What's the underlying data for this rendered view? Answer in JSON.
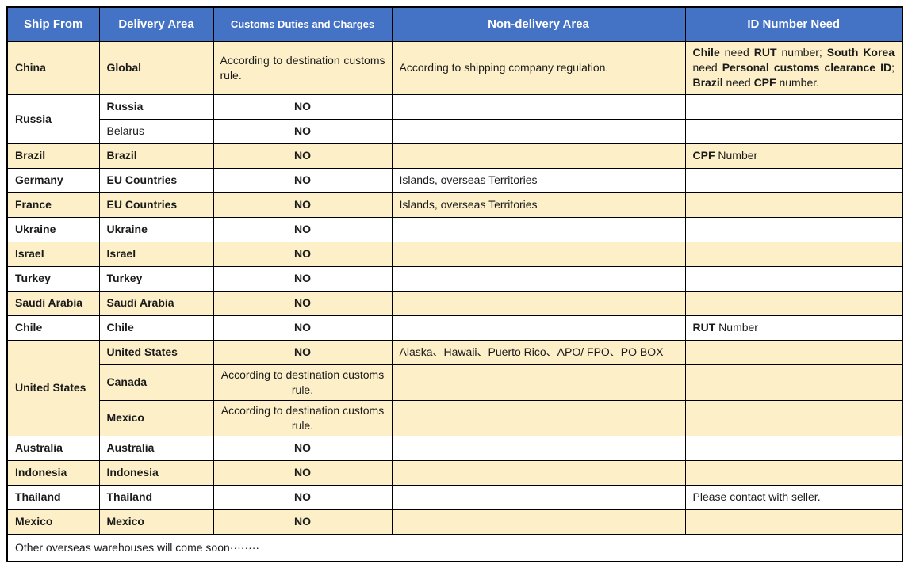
{
  "colors": {
    "header_bg": "#4472C4",
    "header_text": "#FFFFFF",
    "row_stripe_bg": "#FDF0C9",
    "row_plain_bg": "#FFFFFF",
    "border": "#000000",
    "body_text": "#1A1A1A"
  },
  "table": {
    "headers": [
      {
        "name": "ship-from",
        "label": "Ship From"
      },
      {
        "name": "delivery-area",
        "label": "Delivery Area"
      },
      {
        "name": "customs-duties",
        "label": "Customs Duties and Charges"
      },
      {
        "name": "non-delivery-area",
        "label": "Non-delivery Area"
      },
      {
        "name": "id-number-need",
        "label": "ID Number Need"
      }
    ],
    "rows": [
      {
        "bg": "alt",
        "cells": [
          {
            "name": "ship-from",
            "text": "China"
          },
          {
            "name": "delivery-area",
            "text": "Global"
          },
          {
            "name": "customs",
            "text": "According to destination customs rule.",
            "align": "justify",
            "weight": "regular"
          },
          {
            "name": "non-delivery",
            "text": "According to shipping company regulation."
          },
          {
            "name": "id-number",
            "align": "justify",
            "rich": [
              [
                "Chile",
                1
              ],
              [
                " need ",
                0
              ],
              [
                "RUT",
                1
              ],
              [
                " number; ",
                0
              ],
              [
                "South Korea",
                1
              ],
              [
                " need ",
                0
              ],
              [
                "Personal customs clearance ID",
                1
              ],
              [
                "; ",
                0
              ],
              [
                "Brazil",
                1
              ],
              [
                " need ",
                0
              ],
              [
                "CPF",
                1
              ],
              [
                " number.",
                0
              ]
            ]
          }
        ]
      },
      {
        "bg": "plain",
        "cells": [
          {
            "name": "ship-from",
            "text": "Russia",
            "rowspan": 2
          },
          {
            "name": "delivery-area",
            "text": "Russia"
          },
          {
            "name": "customs",
            "text": "NO"
          },
          {
            "name": "non-delivery",
            "text": ""
          },
          {
            "name": "id-number",
            "text": ""
          }
        ]
      },
      {
        "bg": "plain",
        "cells": [
          {
            "name": "delivery-area",
            "text": "Belarus",
            "weight": "regular"
          },
          {
            "name": "customs",
            "text": "NO"
          },
          {
            "name": "non-delivery",
            "text": ""
          },
          {
            "name": "id-number",
            "text": ""
          }
        ]
      },
      {
        "bg": "alt",
        "cells": [
          {
            "name": "ship-from",
            "text": "Brazil"
          },
          {
            "name": "delivery-area",
            "text": "Brazil"
          },
          {
            "name": "customs",
            "text": "NO"
          },
          {
            "name": "non-delivery",
            "text": ""
          },
          {
            "name": "id-number",
            "rich": [
              [
                "CPF",
                1
              ],
              [
                " Number",
                0
              ]
            ]
          }
        ]
      },
      {
        "bg": "plain",
        "cells": [
          {
            "name": "ship-from",
            "text": "Germany"
          },
          {
            "name": "delivery-area",
            "text": "EU Countries"
          },
          {
            "name": "customs",
            "text": "NO"
          },
          {
            "name": "non-delivery",
            "text": "Islands, overseas Territories"
          },
          {
            "name": "id-number",
            "text": ""
          }
        ]
      },
      {
        "bg": "alt",
        "cells": [
          {
            "name": "ship-from",
            "text": "France"
          },
          {
            "name": "delivery-area",
            "text": "EU Countries"
          },
          {
            "name": "customs",
            "text": "NO"
          },
          {
            "name": "non-delivery",
            "text": "Islands, overseas Territories"
          },
          {
            "name": "id-number",
            "text": ""
          }
        ]
      },
      {
        "bg": "plain",
        "cells": [
          {
            "name": "ship-from",
            "text": "Ukraine"
          },
          {
            "name": "delivery-area",
            "text": "Ukraine"
          },
          {
            "name": "customs",
            "text": "NO"
          },
          {
            "name": "non-delivery",
            "text": ""
          },
          {
            "name": "id-number",
            "text": ""
          }
        ]
      },
      {
        "bg": "alt",
        "cells": [
          {
            "name": "ship-from",
            "text": "Israel"
          },
          {
            "name": "delivery-area",
            "text": "Israel"
          },
          {
            "name": "customs",
            "text": "NO"
          },
          {
            "name": "non-delivery",
            "text": ""
          },
          {
            "name": "id-number",
            "text": ""
          }
        ]
      },
      {
        "bg": "plain",
        "cells": [
          {
            "name": "ship-from",
            "text": "Turkey"
          },
          {
            "name": "delivery-area",
            "text": "Turkey"
          },
          {
            "name": "customs",
            "text": "NO"
          },
          {
            "name": "non-delivery",
            "text": ""
          },
          {
            "name": "id-number",
            "text": ""
          }
        ]
      },
      {
        "bg": "alt",
        "cells": [
          {
            "name": "ship-from",
            "text": "Saudi Arabia"
          },
          {
            "name": "delivery-area",
            "text": "Saudi Arabia"
          },
          {
            "name": "customs",
            "text": "NO"
          },
          {
            "name": "non-delivery",
            "text": ""
          },
          {
            "name": "id-number",
            "text": ""
          }
        ]
      },
      {
        "bg": "plain",
        "cells": [
          {
            "name": "ship-from",
            "text": "Chile"
          },
          {
            "name": "delivery-area",
            "text": "Chile"
          },
          {
            "name": "customs",
            "text": "NO"
          },
          {
            "name": "non-delivery",
            "text": ""
          },
          {
            "name": "id-number",
            "rich": [
              [
                "RUT",
                1
              ],
              [
                " Number",
                0
              ]
            ]
          }
        ]
      },
      {
        "bg": "alt",
        "cells": [
          {
            "name": "ship-from",
            "text": "United States",
            "rowspan": 3
          },
          {
            "name": "delivery-area",
            "text": "United States"
          },
          {
            "name": "customs",
            "text": "NO"
          },
          {
            "name": "non-delivery",
            "text": "Alaska、Hawaii、Puerto Rico、APO/ FPO、PO BOX"
          },
          {
            "name": "id-number",
            "text": ""
          }
        ]
      },
      {
        "bg": "alt",
        "cells": [
          {
            "name": "delivery-area",
            "text": "Canada"
          },
          {
            "name": "customs",
            "text": "According to destination customs rule.",
            "align": "center",
            "weight": "regular"
          },
          {
            "name": "non-delivery",
            "text": ""
          },
          {
            "name": "id-number",
            "text": ""
          }
        ]
      },
      {
        "bg": "alt",
        "cells": [
          {
            "name": "delivery-area",
            "text": "Mexico"
          },
          {
            "name": "customs",
            "text": "According to destination customs rule.",
            "align": "center",
            "weight": "regular"
          },
          {
            "name": "non-delivery",
            "text": ""
          },
          {
            "name": "id-number",
            "text": ""
          }
        ]
      },
      {
        "bg": "plain",
        "cells": [
          {
            "name": "ship-from",
            "text": "Australia"
          },
          {
            "name": "delivery-area",
            "text": "Australia"
          },
          {
            "name": "customs",
            "text": "NO"
          },
          {
            "name": "non-delivery",
            "text": ""
          },
          {
            "name": "id-number",
            "text": ""
          }
        ]
      },
      {
        "bg": "alt",
        "cells": [
          {
            "name": "ship-from",
            "text": "Indonesia"
          },
          {
            "name": "delivery-area",
            "text": "Indonesia"
          },
          {
            "name": "customs",
            "text": "NO"
          },
          {
            "name": "non-delivery",
            "text": ""
          },
          {
            "name": "id-number",
            "text": ""
          }
        ]
      },
      {
        "bg": "plain",
        "cells": [
          {
            "name": "ship-from",
            "text": "Thailand"
          },
          {
            "name": "delivery-area",
            "text": "Thailand"
          },
          {
            "name": "customs",
            "text": "NO"
          },
          {
            "name": "non-delivery",
            "text": ""
          },
          {
            "name": "id-number",
            "text": "Please contact with seller."
          }
        ]
      },
      {
        "bg": "alt",
        "cells": [
          {
            "name": "ship-from",
            "text": "Mexico"
          },
          {
            "name": "delivery-area",
            "text": "Mexico"
          },
          {
            "name": "customs",
            "text": "NO"
          },
          {
            "name": "non-delivery",
            "text": ""
          },
          {
            "name": "id-number",
            "text": ""
          }
        ]
      },
      {
        "bg": "plain",
        "cells": [
          {
            "name": "note",
            "text": "Other overseas warehouses will come soon········",
            "colspan": 5,
            "weight": "regular",
            "align": "left"
          }
        ]
      }
    ]
  }
}
